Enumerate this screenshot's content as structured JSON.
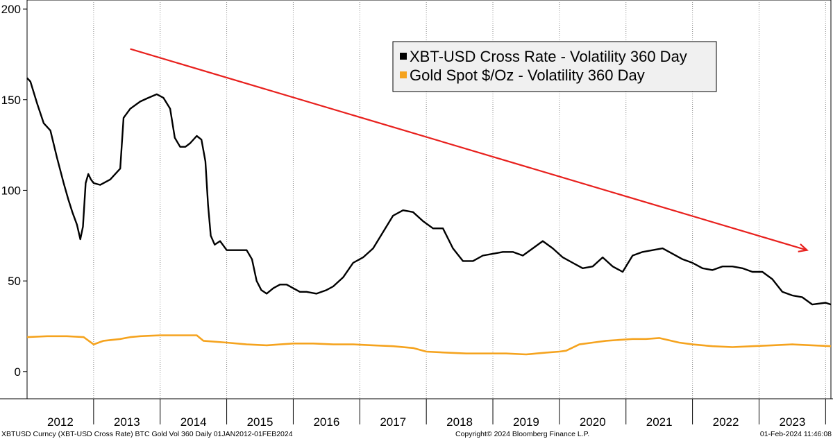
{
  "chart_data": {
    "type": "line",
    "title": "",
    "xlabel": "",
    "ylabel": "",
    "xlim": [
      2012.0,
      2024.08
    ],
    "ylim": [
      -15,
      205
    ],
    "y_ticks": [
      0,
      50,
      100,
      150,
      200
    ],
    "x_tick_labels": [
      "2012",
      "2013",
      "2014",
      "2015",
      "2016",
      "2017",
      "2018",
      "2019",
      "2020",
      "2021",
      "2022",
      "2023"
    ],
    "x_tick_years": [
      2012,
      2013,
      2014,
      2015,
      2016,
      2017,
      2018,
      2019,
      2020,
      2021,
      2022,
      2023
    ],
    "gridlines": "vertical at year boundaries",
    "legend_position": "top-center",
    "series": [
      {
        "name": "XBT-USD Cross Rate - Volatility 360 Day",
        "color": "#000000",
        "x": [
          2012.0,
          2012.05,
          2012.15,
          2012.25,
          2012.35,
          2012.45,
          2012.55,
          2012.62,
          2012.68,
          2012.75,
          2012.8,
          2012.84,
          2012.88,
          2012.92,
          2012.96,
          2013.0,
          2013.1,
          2013.25,
          2013.4,
          2013.45,
          2013.55,
          2013.7,
          2013.82,
          2013.95,
          2014.05,
          2014.15,
          2014.22,
          2014.3,
          2014.38,
          2014.45,
          2014.55,
          2014.62,
          2014.68,
          2014.72,
          2014.76,
          2014.82,
          2014.9,
          2015.0,
          2015.1,
          2015.2,
          2015.3,
          2015.38,
          2015.45,
          2015.52,
          2015.6,
          2015.7,
          2015.8,
          2015.9,
          2016.0,
          2016.1,
          2016.2,
          2016.35,
          2016.5,
          2016.6,
          2016.75,
          2016.9,
          2017.05,
          2017.2,
          2017.35,
          2017.5,
          2017.65,
          2017.8,
          2017.95,
          2018.1,
          2018.25,
          2018.4,
          2018.55,
          2018.7,
          2018.85,
          2019.0,
          2019.15,
          2019.3,
          2019.45,
          2019.6,
          2019.75,
          2019.9,
          2020.05,
          2020.2,
          2020.35,
          2020.5,
          2020.65,
          2020.8,
          2020.95,
          2021.1,
          2021.25,
          2021.4,
          2021.55,
          2021.7,
          2021.85,
          2022.0,
          2022.15,
          2022.3,
          2022.45,
          2022.6,
          2022.75,
          2022.9,
          2023.05,
          2023.2,
          2023.35,
          2023.5,
          2023.65,
          2023.8,
          2024.0,
          2024.08
        ],
        "values": [
          162,
          160,
          148,
          137,
          133,
          118,
          104,
          95,
          88,
          81,
          73,
          80,
          104,
          109,
          106,
          104,
          103,
          106,
          112,
          140,
          145,
          149,
          151,
          153,
          151,
          145,
          129,
          124,
          124,
          126,
          130,
          128,
          116,
          92,
          75,
          70,
          72,
          67,
          67,
          67,
          67,
          62,
          50,
          45,
          43,
          46,
          48,
          48,
          46,
          44,
          44,
          43,
          45,
          47,
          52,
          60,
          63,
          68,
          77,
          86,
          89,
          88,
          83,
          79,
          79,
          68,
          61,
          61,
          64,
          65,
          66,
          66,
          64,
          68,
          72,
          68,
          63,
          60,
          57,
          58,
          63,
          58,
          55,
          64,
          66,
          67,
          68,
          65,
          62,
          60,
          57,
          56,
          58,
          58,
          57,
          55,
          55,
          51,
          44,
          42,
          41,
          37,
          38,
          37
        ]
      },
      {
        "name": "Gold Spot $/Oz - Volatility 360 Day",
        "color": "#f5a31e",
        "x": [
          2012.0,
          2012.3,
          2012.6,
          2012.85,
          2013.0,
          2013.15,
          2013.4,
          2013.55,
          2013.7,
          2014.0,
          2014.3,
          2014.55,
          2014.65,
          2015.0,
          2015.3,
          2015.6,
          2015.8,
          2016.0,
          2016.3,
          2016.6,
          2016.9,
          2017.2,
          2017.5,
          2017.8,
          2018.0,
          2018.3,
          2018.6,
          2018.9,
          2019.2,
          2019.5,
          2019.8,
          2020.0,
          2020.1,
          2020.3,
          2020.5,
          2020.7,
          2020.9,
          2021.1,
          2021.3,
          2021.5,
          2021.8,
          2022.0,
          2022.3,
          2022.6,
          2022.9,
          2023.2,
          2023.5,
          2023.8,
          2024.08
        ],
        "values": [
          19,
          19.5,
          19.5,
          19,
          15,
          17,
          18,
          19,
          19.5,
          20,
          20,
          20,
          17,
          16,
          15,
          14.5,
          15,
          15.5,
          15.5,
          15,
          15,
          14.5,
          14,
          13,
          11,
          10.5,
          10,
          10,
          10,
          9.5,
          10.5,
          11,
          11.5,
          15,
          16,
          17,
          17.5,
          18,
          18,
          18.5,
          16,
          15,
          14,
          13.5,
          14,
          14.5,
          15,
          14.5,
          14
        ]
      }
    ],
    "annotations": [
      {
        "type": "arrow",
        "color": "#e8201d",
        "from": [
          2013.55,
          178
        ],
        "to": [
          2023.72,
          67
        ]
      }
    ]
  },
  "footer": {
    "left": "XBTUSD Curncy (XBT-USD Cross Rate) BTC Gold Vol 360   Daily 01JAN2012-01FEB2024",
    "center": "Copyright© 2024 Bloomberg Finance L.P.",
    "right": "01-Feb-2024 11:46:08"
  }
}
